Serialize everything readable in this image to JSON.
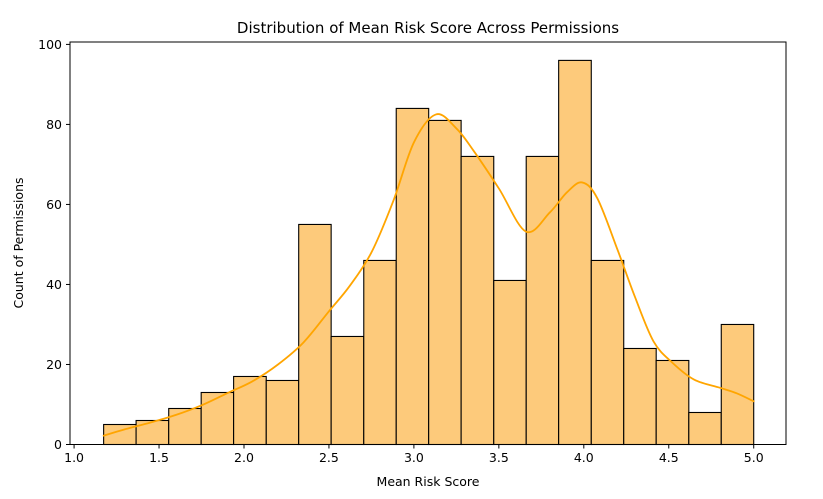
{
  "chart_data": {
    "type": "bar",
    "subtype": "histogram_with_kde",
    "title": "Distribution of Mean Risk Score Across Permissions",
    "xlabel": "Mean Risk Score",
    "ylabel": "Count of Permissions",
    "xlim": [
      0.976,
      5.19
    ],
    "ylim": [
      0,
      100.6
    ],
    "xticks": [
      1.0,
      1.5,
      2.0,
      2.5,
      3.0,
      3.5,
      4.0,
      4.5,
      5.0
    ],
    "yticks": [
      0,
      20,
      40,
      60,
      80,
      100
    ],
    "grid": false,
    "legend": "none",
    "bin_edges": [
      1.174,
      1.365,
      1.557,
      1.748,
      1.939,
      2.131,
      2.322,
      2.513,
      2.705,
      2.896,
      3.087,
      3.278,
      3.47,
      3.661,
      3.852,
      4.044,
      4.235,
      4.426,
      4.618,
      4.809,
      5.0
    ],
    "counts": [
      5,
      6,
      9,
      13,
      17,
      16,
      55,
      27,
      46,
      84,
      81,
      72,
      41,
      72,
      96,
      46,
      24,
      21,
      8,
      30
    ],
    "kde_curve": [
      [
        1.174,
        2.2
      ],
      [
        1.3,
        3.8
      ],
      [
        1.45,
        5.5
      ],
      [
        1.6,
        7.4
      ],
      [
        1.75,
        9.8
      ],
      [
        1.9,
        12.8
      ],
      [
        2.05,
        15.8
      ],
      [
        2.2,
        20.0
      ],
      [
        2.35,
        25.5
      ],
      [
        2.5,
        33.3
      ],
      [
        2.62,
        39.5
      ],
      [
        2.75,
        48.0
      ],
      [
        2.88,
        61.0
      ],
      [
        3.0,
        75.5
      ],
      [
        3.13,
        82.5
      ],
      [
        3.25,
        79.0
      ],
      [
        3.35,
        73.5
      ],
      [
        3.5,
        64.0
      ],
      [
        3.66,
        53.2
      ],
      [
        3.8,
        58.0
      ],
      [
        3.9,
        63.0
      ],
      [
        3.99,
        65.5
      ],
      [
        4.08,
        61.5
      ],
      [
        4.2,
        48.5
      ],
      [
        4.3,
        37.0
      ],
      [
        4.41,
        25.8
      ],
      [
        4.52,
        20.5
      ],
      [
        4.65,
        16.2
      ],
      [
        4.8,
        14.2
      ],
      [
        4.9,
        12.8
      ],
      [
        5.0,
        10.8
      ]
    ],
    "colors": {
      "bar_fill": "#FDCA7B",
      "bar_edge": "#000000",
      "kde_line": "#FFA500",
      "axis": "#000000",
      "background": "#FFFFFF"
    }
  }
}
